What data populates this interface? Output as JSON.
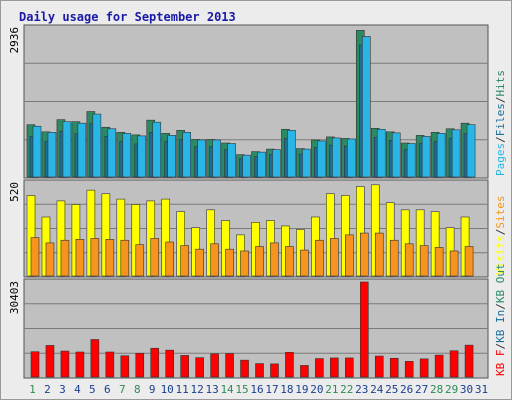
{
  "title": "Daily usage for September 2013",
  "colors": {
    "pages": "#2b8a63",
    "files": "#1a6f9a",
    "hits": "#29b6e6",
    "visits": "#ffff00",
    "sites": "#f7941d",
    "kbin": "#cc0000",
    "kbout": "#ff0000",
    "weekday": "#1a3f8f",
    "weekend": "#2e8b57",
    "panel_bg": "#c0c0c0"
  },
  "chart_data": [
    {
      "type": "bar",
      "max_label": "2936",
      "ylim": [
        0,
        2936
      ],
      "side_label": [
        "Pages",
        "/",
        "Files",
        "/",
        "Hits"
      ],
      "categories": [
        "1",
        "2",
        "3",
        "4",
        "5",
        "6",
        "7",
        "8",
        "9",
        "10",
        "11",
        "12",
        "13",
        "14",
        "15",
        "16",
        "17",
        "18",
        "19",
        "20",
        "21",
        "22",
        "23",
        "24",
        "25",
        "26",
        "27",
        "28",
        "29",
        "30",
        "31"
      ],
      "series": [
        {
          "key": "pages",
          "values": [
            1030,
            890,
            1130,
            1090,
            1290,
            980,
            880,
            830,
            1120,
            860,
            920,
            740,
            740,
            670,
            440,
            500,
            550,
            940,
            560,
            730,
            790,
            760,
            2890,
            960,
            890,
            670,
            820,
            880,
            950,
            1060,
            0
          ]
        },
        {
          "key": "files",
          "values": [
            800,
            700,
            900,
            850,
            1050,
            800,
            700,
            650,
            880,
            700,
            740,
            600,
            600,
            540,
            360,
            400,
            440,
            760,
            450,
            580,
            630,
            610,
            2600,
            780,
            720,
            540,
            660,
            700,
            760,
            850,
            0
          ]
        },
        {
          "key": "hits",
          "values": [
            1000,
            880,
            1090,
            1060,
            1240,
            950,
            860,
            810,
            1080,
            820,
            880,
            730,
            730,
            660,
            430,
            490,
            540,
            920,
            550,
            710,
            770,
            750,
            2770,
            940,
            870,
            660,
            800,
            860,
            930,
            1030,
            0
          ]
        }
      ]
    },
    {
      "type": "bar",
      "max_label": "520",
      "ylim": [
        0,
        520
      ],
      "side_label": [
        "Visits",
        "/",
        "Sites"
      ],
      "categories": [
        "1",
        "2",
        "3",
        "4",
        "5",
        "6",
        "7",
        "8",
        "9",
        "10",
        "11",
        "12",
        "13",
        "14",
        "15",
        "16",
        "17",
        "18",
        "19",
        "20",
        "21",
        "22",
        "23",
        "24",
        "25",
        "26",
        "27",
        "28",
        "29",
        "30",
        "31"
      ],
      "series": [
        {
          "key": "visits",
          "values": [
            450,
            330,
            420,
            400,
            480,
            460,
            430,
            400,
            420,
            430,
            360,
            270,
            370,
            310,
            230,
            300,
            310,
            280,
            260,
            330,
            460,
            450,
            500,
            510,
            410,
            370,
            370,
            360,
            270,
            330,
            0
          ]
        },
        {
          "key": "sites",
          "values": [
            215,
            185,
            200,
            205,
            210,
            205,
            200,
            175,
            210,
            190,
            170,
            150,
            180,
            150,
            140,
            165,
            185,
            165,
            145,
            200,
            210,
            230,
            240,
            240,
            200,
            180,
            170,
            160,
            140,
            165,
            0
          ]
        }
      ]
    },
    {
      "type": "bar",
      "max_label": "30403",
      "ylim": [
        0,
        30403
      ],
      "side_label": [
        "KB F",
        "/",
        "KB In",
        "/",
        "KB Out"
      ],
      "categories": [
        "1",
        "2",
        "3",
        "4",
        "5",
        "6",
        "7",
        "8",
        "9",
        "10",
        "11",
        "12",
        "13",
        "14",
        "15",
        "16",
        "17",
        "18",
        "19",
        "20",
        "21",
        "22",
        "23",
        "24",
        "25",
        "26",
        "27",
        "28",
        "29",
        "30",
        "31"
      ],
      "series": [
        {
          "key": "kbin",
          "values": [
            0,
            0,
            0,
            0,
            0,
            0,
            0,
            0,
            0,
            0,
            0,
            0,
            0,
            0,
            0,
            0,
            0,
            0,
            0,
            0,
            0,
            0,
            0,
            0,
            0,
            0,
            0,
            0,
            0,
            0,
            0
          ]
        },
        {
          "key": "kbout",
          "values": [
            8100,
            10100,
            8300,
            8000,
            12000,
            8000,
            6800,
            7600,
            9200,
            8600,
            6900,
            6200,
            7400,
            7500,
            5400,
            4300,
            4200,
            7900,
            3700,
            5900,
            6100,
            6100,
            30403,
            6700,
            6000,
            5000,
            5800,
            7000,
            8400,
            10200,
            0
          ]
        }
      ]
    }
  ],
  "weekend_days": [
    1,
    7,
    8,
    14,
    15,
    21,
    22,
    28,
    29
  ]
}
